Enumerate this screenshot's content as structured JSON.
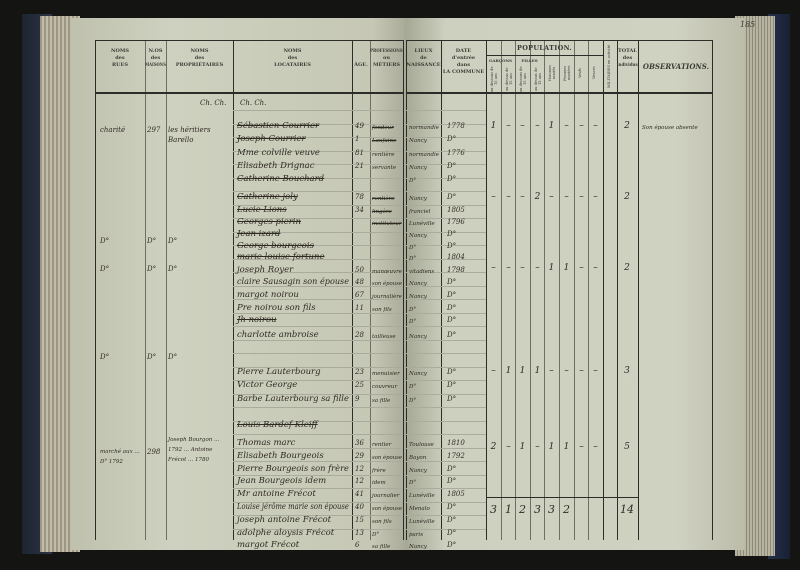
{
  "page_number": "185",
  "headers_left": {
    "rues": [
      "NOMS",
      "des",
      "RUES"
    ],
    "maisons": [
      "N.os",
      "des",
      "MAISONS"
    ],
    "proprietaires": [
      "NOMS",
      "des",
      "PROPRIÉTAIRES"
    ],
    "locataires": [
      "NOMS",
      "des",
      "LOCATAIRES"
    ],
    "age": "ÂGE.",
    "professions": [
      "PROFESSIONS",
      "ou",
      "MÉTIERS"
    ],
    "ditto_prop": "Ch. Ch.",
    "ditto_loc": "Ch. Ch."
  },
  "headers_right": {
    "lieux": [
      "LIEUX",
      "de",
      "NAISSANCE"
    ],
    "date": [
      "DATE",
      "d'entrée",
      "dans",
      "la COMMUNE"
    ],
    "population": "POPULATION.",
    "garcons": "Garçons",
    "filles": "Filles",
    "sub_cols": [
      "au dessous de 15 ans",
      "au dessus de 15 ans",
      "au dessous de 15 ans",
      "au dessus de 15 ans",
      "Hommes mariés",
      "Femmes mariées",
      "Veufs",
      "Veuves"
    ],
    "militaires": "MILITAIRES en activité",
    "total": [
      "TOTAL",
      "des",
      "individus"
    ],
    "observations": "OBSERVATIONS."
  },
  "houses": [
    {
      "rue": "charité",
      "numero": "297",
      "proprietaire": "les héritiers Barello"
    },
    {
      "rue": "D°",
      "numero": "D°",
      "proprietaire": "D°"
    },
    {
      "rue": "D°",
      "numero": "D°",
      "proprietaire": "D°"
    },
    {
      "rue": "D°",
      "numero": "D°",
      "proprietaire": "D°"
    },
    {
      "rue": "marché aux ... D° 1792",
      "numero": "298",
      "proprietaire": "Joseph Bourgon ... 1792 ... Antoine Frécot ... 1780"
    }
  ],
  "entries": [
    {
      "locataire": "Sébastien Courrier",
      "age": "49",
      "profession": "fondeur",
      "lieu": "normandie",
      "date": "1778",
      "struck": true
    },
    {
      "locataire": "Joseph Courrier",
      "age": "1",
      "profession": "Laufaine",
      "lieu": "Nancy",
      "date": "D°",
      "struck": true
    },
    {
      "locataire": "Mme colville veuve",
      "age": "81",
      "profession": "rentière",
      "lieu": "normandie",
      "date": "1776"
    },
    {
      "locataire": "Elisabeth Drignac",
      "age": "21",
      "profession": "servante",
      "lieu": "Nancy",
      "date": "D°"
    },
    {
      "locataire": "Catherine Bouchard",
      "age": "",
      "profession": "",
      "lieu": "D°",
      "date": "D°",
      "struck": true
    },
    {
      "locataire": "Catherine joly",
      "age": "78",
      "profession": "rentière",
      "lieu": "Nancy",
      "date": "D°",
      "struck": true
    },
    {
      "locataire": "Lucie Lions",
      "age": "34",
      "profession": "lingère",
      "lieu": "franciel",
      "date": "1805",
      "struck": true
    },
    {
      "locataire": "Georges pierin",
      "age": "",
      "profession": "instituteur",
      "lieu": "Lunéville",
      "date": "1796",
      "struck": true
    },
    {
      "locataire": "Jean izard",
      "age": "",
      "profession": "",
      "lieu": "Nancy",
      "date": "D°",
      "struck": true
    },
    {
      "locataire": "George bourgeois",
      "age": "",
      "profession": "",
      "lieu": "D°",
      "date": "D°",
      "struck": true
    },
    {
      "locataire": "marie louise fortune",
      "age": "",
      "profession": "",
      "lieu": "D°",
      "date": "1804",
      "struck": true
    },
    {
      "locataire": "joseph Royer",
      "age": "50",
      "profession": "manœuvre",
      "lieu": "vitadiens",
      "date": "1798"
    },
    {
      "locataire": "claire Sausagin son épouse",
      "age": "48",
      "profession": "son épouse",
      "lieu": "Nancy",
      "date": "D°"
    },
    {
      "locataire": "margot noirou",
      "age": "67",
      "profession": "journalière",
      "lieu": "Nancy",
      "date": "D°"
    },
    {
      "locataire": "Pre noirou son fils",
      "age": "11",
      "profession": "son fils",
      "lieu": "D°",
      "date": "D°"
    },
    {
      "locataire": "Jh noirou",
      "age": "",
      "profession": "",
      "lieu": "D°",
      "date": "D°",
      "struck": true
    },
    {
      "locataire": "charlotte ambroise",
      "age": "28",
      "profession": "tailleuse",
      "lieu": "Nancy",
      "date": "D°"
    },
    {
      "locataire": "Pierre Lauterbourg",
      "age": "23",
      "profession": "menuisier",
      "lieu": "Nancy",
      "date": "D°"
    },
    {
      "locataire": "Victor George",
      "age": "25",
      "profession": "couvreur",
      "lieu": "D°",
      "date": "D°"
    },
    {
      "locataire": "Barbe Lauterbourg sa fille",
      "age": "9",
      "profession": "sa fille",
      "lieu": "D°",
      "date": "D°"
    },
    {
      "locataire": "Louis Bardef Kleiff",
      "age": "",
      "profession": "",
      "lieu": "",
      "date": "",
      "struck": true
    },
    {
      "locataire": "Thomas marc",
      "age": "36",
      "profession": "rentier",
      "lieu": "Toulouse",
      "date": "1810"
    },
    {
      "locataire": "Elisabeth Bourgeois",
      "age": "29",
      "profession": "son épouse",
      "lieu": "Bayon",
      "date": "1792"
    },
    {
      "locataire": "Pierre Bourgeois son frère",
      "age": "12",
      "profession": "frère",
      "lieu": "Nancy",
      "date": "D°"
    },
    {
      "locataire": "Jean Bourgeois idem",
      "age": "12",
      "profession": "idem",
      "lieu": "D°",
      "date": "D°"
    },
    {
      "locataire": "Mr antoine Frécot",
      "age": "41",
      "profession": "journalier",
      "lieu": "Lunéville",
      "date": "1805"
    },
    {
      "locataire": "Louise jérôme marie son épouse",
      "age": "40",
      "profession": "son épouse",
      "lieu": "Menalo",
      "date": "D°"
    },
    {
      "locataire": "joseph antoine Frécot",
      "age": "15",
      "profession": "son fils",
      "lieu": "Lunéville",
      "date": "D°"
    },
    {
      "locataire": "adolphe aloysis Frécot",
      "age": "13",
      "profession": "D°",
      "lieu": "paris",
      "date": "D°"
    },
    {
      "locataire": "margot Frécot",
      "age": "6",
      "profession": "sa fille",
      "lieu": "Nancy",
      "date": "D°"
    }
  ],
  "population_rows": [
    {
      "values": [
        "1",
        "–",
        "–",
        "–",
        "1",
        "–",
        "–",
        "–"
      ],
      "total": "2",
      "observation": "Son épouse absente"
    },
    {
      "values": [
        "–",
        "–",
        "–",
        "2",
        "–",
        "–",
        "–",
        "–"
      ],
      "total": "2",
      "observation": ""
    },
    {
      "values": [
        "–",
        "–",
        "–",
        "–",
        "1",
        "1",
        "–",
        "–"
      ],
      "total": "2",
      "observation": ""
    },
    {
      "values": [
        "–",
        "1",
        "1",
        "1",
        "–",
        "–",
        "–",
        "–"
      ],
      "total": "3",
      "observation": ""
    },
    {
      "values": [
        "2",
        "–",
        "1",
        "–",
        "1",
        "1",
        "–",
        "–"
      ],
      "total": "5",
      "observation": ""
    }
  ],
  "totals": {
    "values": [
      "3",
      "1",
      "2",
      "3",
      "3",
      "2",
      "",
      ""
    ],
    "total": "14"
  }
}
